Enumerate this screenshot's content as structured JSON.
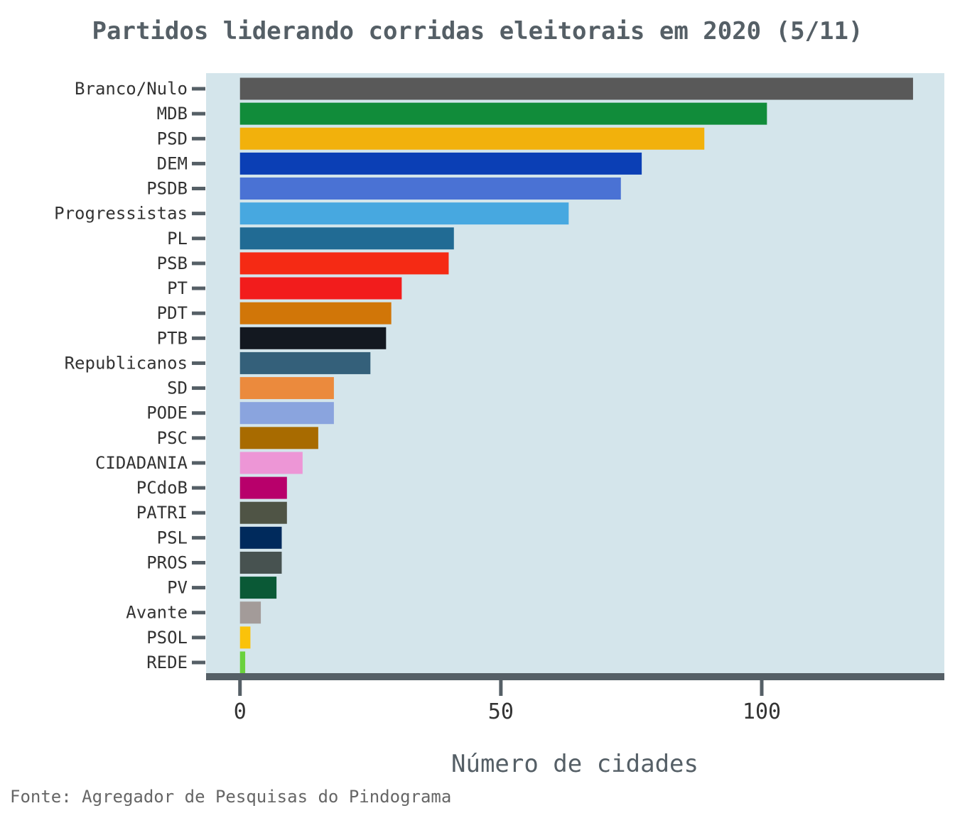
{
  "chart_data": {
    "type": "bar",
    "orientation": "horizontal",
    "title": "Partidos liderando corridas eleitorais em 2020 (5/11)",
    "xlabel": "Número de cidades",
    "ylabel": "",
    "source": "Fonte: Agregador de Pesquisas do Pindograma",
    "xlim": [
      -6.5,
      135
    ],
    "xticks": [
      0,
      50,
      100
    ],
    "grid": false,
    "plot_background": "#d4e5eb",
    "axis_color": "#555f66",
    "categories": [
      "Branco/Nulo",
      "MDB",
      "PSD",
      "DEM",
      "PSDB",
      "Progressistas",
      "PL",
      "PSB",
      "PT",
      "PDT",
      "PTB",
      "Republicanos",
      "SD",
      "PODE",
      "PSC",
      "CIDADANIA",
      "PCdoB",
      "PATRI",
      "PSL",
      "PROS",
      "PV",
      "Avante",
      "PSOL",
      "REDE"
    ],
    "values": [
      129,
      101,
      89,
      77,
      73,
      63,
      41,
      40,
      31,
      29,
      28,
      25,
      18,
      18,
      15,
      12,
      9,
      9,
      8,
      8,
      7,
      4,
      2,
      1
    ],
    "colors": [
      "#595959",
      "#118c3a",
      "#f2b10c",
      "#0b3fb5",
      "#4a72d4",
      "#47a8e0",
      "#216b94",
      "#f52a14",
      "#f21c1c",
      "#d17608",
      "#131820",
      "#34607a",
      "#eb8a3d",
      "#8aa4de",
      "#a86b00",
      "#ed96d6",
      "#b8006b",
      "#4f5445",
      "#002a5c",
      "#475250",
      "#0a5936",
      "#a39b99",
      "#fac20a",
      "#6ad13d"
    ]
  }
}
